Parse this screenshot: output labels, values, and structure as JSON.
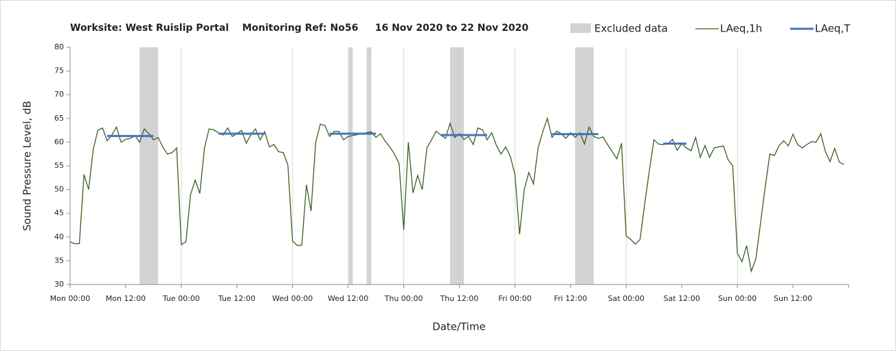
{
  "chart_data": {
    "type": "line",
    "title": "Worksite: West Ruislip Portal    Monitoring Ref: No56     16 Nov 2020 to 22 Nov 2020",
    "xlabel": "Date/Time",
    "ylabel": "Sound Pressure Level, dB",
    "xlim": [
      0,
      168
    ],
    "ylim": [
      30,
      80
    ],
    "yticks": [
      30,
      35,
      40,
      45,
      50,
      55,
      60,
      65,
      70,
      75,
      80
    ],
    "xticks": [
      {
        "value": 0,
        "label": "Mon 00:00"
      },
      {
        "value": 12,
        "label": "Mon 12:00"
      },
      {
        "value": 24,
        "label": "Tue 00:00"
      },
      {
        "value": 36,
        "label": "Tue 12:00"
      },
      {
        "value": 48,
        "label": "Wed 00:00"
      },
      {
        "value": 60,
        "label": "Wed 12:00"
      },
      {
        "value": 72,
        "label": "Thu 00:00"
      },
      {
        "value": 84,
        "label": "Thu 12:00"
      },
      {
        "value": 96,
        "label": "Fri 00:00"
      },
      {
        "value": 108,
        "label": "Fri 12:00"
      },
      {
        "value": 120,
        "label": "Sat 00:00"
      },
      {
        "value": 132,
        "label": "Sat 12:00"
      },
      {
        "value": 144,
        "label": "Sun 00:00"
      },
      {
        "value": 156,
        "label": "Sun 12:00"
      }
    ],
    "excluded": {
      "name": "Excluded data",
      "color": "#d3d3d3",
      "ranges": [
        [
          15,
          19
        ],
        [
          60,
          61
        ],
        [
          64,
          65
        ],
        [
          82,
          85
        ],
        [
          109,
          113
        ]
      ]
    },
    "x": [
      0,
      1,
      2,
      3,
      4,
      5,
      6,
      7,
      8,
      9,
      10,
      11,
      12,
      13,
      14,
      15,
      16,
      17,
      18,
      19,
      20,
      21,
      22,
      23,
      24,
      25,
      26,
      27,
      28,
      29,
      30,
      31,
      32,
      33,
      34,
      35,
      36,
      37,
      38,
      39,
      40,
      41,
      42,
      43,
      44,
      45,
      46,
      47,
      48,
      49,
      50,
      51,
      52,
      53,
      54,
      55,
      56,
      57,
      58,
      59,
      60,
      61,
      62,
      63,
      64,
      65,
      66,
      67,
      68,
      69,
      70,
      71,
      72,
      73,
      74,
      75,
      76,
      77,
      78,
      79,
      80,
      81,
      82,
      83,
      84,
      85,
      86,
      87,
      88,
      89,
      90,
      91,
      92,
      93,
      94,
      95,
      96,
      97,
      98,
      99,
      100,
      101,
      102,
      103,
      104,
      105,
      106,
      107,
      108,
      109,
      110,
      111,
      112,
      113,
      114,
      115,
      116,
      117,
      118,
      119,
      120,
      121,
      122,
      123,
      124,
      125,
      126,
      127,
      128,
      129,
      130,
      131,
      132,
      133,
      134,
      135,
      136,
      137,
      138,
      139,
      140,
      141,
      142,
      143,
      144,
      145,
      146,
      147,
      148,
      149,
      150,
      151,
      152,
      153,
      154,
      155,
      156,
      157,
      158,
      159,
      160,
      161,
      162,
      163,
      164,
      165,
      166,
      167
    ],
    "series": [
      {
        "name": "LAeq,1h",
        "color": "#3a5e1f",
        "values": [
          39,
          38.6,
          38.6,
          53.2,
          50,
          58.5,
          62.5,
          63,
          60.3,
          61.5,
          63.2,
          60,
          60.6,
          60.8,
          61.4,
          60,
          62.8,
          61.8,
          60.5,
          61,
          59,
          57.5,
          57.8,
          58.8,
          38.4,
          39,
          49,
          52,
          49.2,
          58.8,
          62.8,
          62.6,
          62,
          61.5,
          63,
          61.2,
          61.8,
          62.5,
          59.8,
          61.5,
          62.8,
          60.5,
          62.2,
          59,
          59.5,
          58,
          57.8,
          55.2,
          39.2,
          38.2,
          38.3,
          51,
          45.5,
          60,
          63.8,
          63.5,
          61.2,
          62.3,
          62.3,
          60.5,
          61.2,
          61.4,
          61.6,
          61.8,
          62,
          62.2,
          61,
          61.8,
          60.2,
          59,
          57.5,
          55.5,
          41.5,
          60,
          49.3,
          53,
          50,
          58.8,
          60.5,
          62.3,
          61.5,
          60.8,
          64,
          61,
          61.8,
          60.6,
          61.2,
          59.5,
          63,
          62.6,
          60.5,
          62,
          59.3,
          57.5,
          59,
          57,
          53.2,
          40.6,
          50,
          53.6,
          51.2,
          58.8,
          62.2,
          65,
          61,
          62.3,
          61.8,
          60.8,
          62,
          61,
          62,
          59.6,
          63.2,
          61.2,
          60.8,
          61.1,
          59.5,
          58,
          56.5,
          59.8,
          40.2,
          39.5,
          38.5,
          39.5,
          47,
          54,
          60.5,
          59.6,
          59.5,
          59.6,
          60.6,
          58.3,
          59.7,
          58.8,
          58.2,
          61,
          56.8,
          59.3,
          56.8,
          58.8,
          59,
          59.2,
          56.3,
          55,
          36.6,
          34.8,
          38.2,
          32.8,
          35.4,
          43,
          50.5,
          57.5,
          57.2,
          59.3,
          60.3,
          59.2,
          61.7,
          59.5,
          58.8,
          59.5,
          60.1,
          60,
          61.8,
          58,
          55.9,
          58.7,
          55.8,
          55.3
        ]
      },
      {
        "name": "LAeq,T",
        "color": "#4472c4",
        "segments": [
          {
            "x": [
              8,
              18
            ],
            "value": 61.3
          },
          {
            "x": [
              32,
              42
            ],
            "value": 61.8
          },
          {
            "x": [
              56,
              66
            ],
            "value": 61.8
          },
          {
            "x": [
              80,
              90
            ],
            "value": 61.5
          },
          {
            "x": [
              104,
              114
            ],
            "value": 61.7
          },
          {
            "x": [
              128,
              133
            ],
            "value": 59.7
          }
        ]
      }
    ]
  }
}
